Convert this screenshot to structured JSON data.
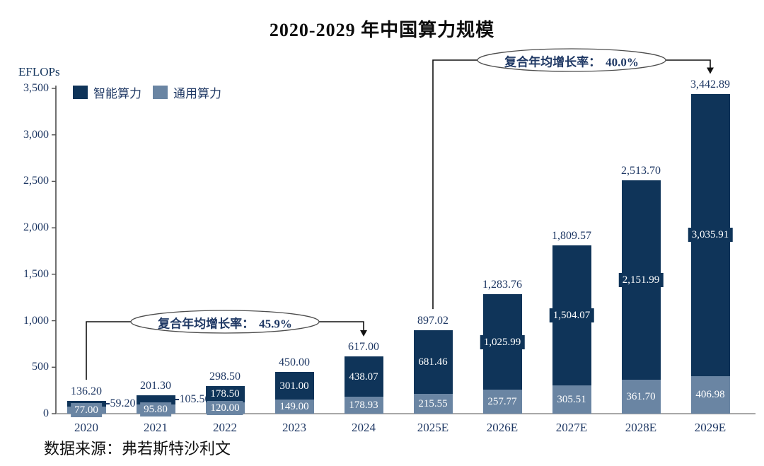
{
  "chart_data": {
    "type": "bar",
    "stacked": true,
    "title": "2020-2029 年中国算力规模",
    "unit_label": "EFLOPs",
    "categories": [
      "2020",
      "2021",
      "2022",
      "2023",
      "2024",
      "2025E",
      "2026E",
      "2027E",
      "2028E",
      "2029E"
    ],
    "series": [
      {
        "name": "通用算力",
        "color": "#6A85A3",
        "values": [
          77.0,
          95.8,
          120.0,
          149.0,
          178.93,
          215.55,
          257.77,
          305.51,
          361.7,
          406.98
        ],
        "labels": [
          "77.00",
          "95.80",
          "120.00",
          "149.00",
          "178.93",
          "215.55",
          "257.77",
          "305.51",
          "361.70",
          "406.98"
        ]
      },
      {
        "name": "智能算力",
        "color": "#0F3459",
        "values": [
          59.2,
          105.5,
          178.5,
          301.0,
          438.07,
          681.46,
          1025.99,
          1504.07,
          2151.99,
          3035.91
        ],
        "labels": [
          "59.20",
          "105.50",
          "178.50",
          "301.00",
          "438.07",
          "681.46",
          "1,025.99",
          "1,504.07",
          "2,151.99",
          "3,035.91"
        ]
      }
    ],
    "totals": [
      "136.20",
      "201.30",
      "298.50",
      "450.00",
      "617.00",
      "897.02",
      "1,283.76",
      "1,809.57",
      "2,513.70",
      "3,442.89"
    ],
    "ylim": [
      0,
      3500
    ],
    "yticks": [
      "0",
      "500",
      "1,000",
      "1,500",
      "2,000",
      "2,500",
      "3,000",
      "3,500"
    ],
    "grid": false,
    "legend_position": "top-left",
    "legend": [
      {
        "label": "智能算力",
        "color": "#0F3459"
      },
      {
        "label": "通用算力",
        "color": "#6A85A3"
      }
    ],
    "annotations": [
      {
        "text": "复合年均增长率：",
        "value": "45.9%",
        "from_category": "2020",
        "to_category": "2024"
      },
      {
        "text": "复合年均增长率：",
        "value": "40.0%",
        "from_category": "2025E",
        "to_category": "2029E"
      }
    ],
    "source": "数据来源：弗若斯特沙利文"
  }
}
